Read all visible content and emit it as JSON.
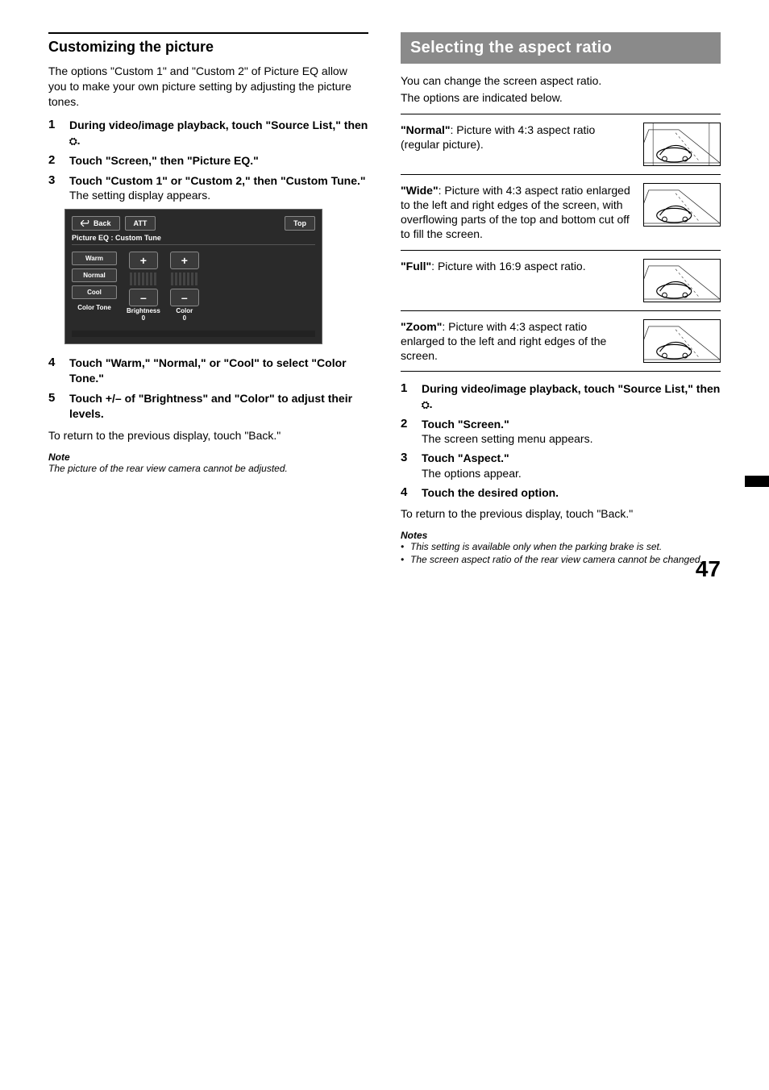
{
  "left": {
    "rule": true,
    "heading": "Customizing the picture",
    "intro": "The options \"Custom 1\" and \"Custom 2\" of Picture EQ allow you to make your own picture setting by adjusting the picture tones.",
    "steps_a": [
      {
        "num": "1",
        "title_pre": "During video/image playback, touch \"Source List,\" then ",
        "icon": "⛭",
        "title_post": "."
      },
      {
        "num": "2",
        "title": "Touch \"Screen,\" then \"Picture EQ.\""
      },
      {
        "num": "3",
        "title": "Touch \"Custom 1\" or \"Custom 2,\" then \"Custom Tune.\"",
        "text": "The setting display appears."
      }
    ],
    "mock": {
      "back": "Back",
      "att": "ATT",
      "top": "Top",
      "title": "Picture EQ : Custom Tune",
      "tones": [
        "Warm",
        "Normal",
        "Cool"
      ],
      "tone_label": "Color Tone",
      "brightness_label": "Brightness",
      "brightness_val": "0",
      "color_label": "Color",
      "color_val": "0"
    },
    "steps_b": [
      {
        "num": "4",
        "title": "Touch \"Warm,\" \"Normal,\" or \"Cool\" to select \"Color Tone.\""
      },
      {
        "num": "5",
        "title": "Touch +/– of \"Brightness\" and \"Color\" to adjust their levels."
      }
    ],
    "return_text": "To return to the previous display, touch \"Back.\"",
    "note_head": "Note",
    "note_body": "The picture of the rear view camera cannot be adjusted."
  },
  "right": {
    "banner": "Selecting the aspect ratio",
    "intro1": "You can change the screen aspect ratio.",
    "intro2": "The options are indicated below.",
    "aspects": [
      {
        "name": "\"Normal\"",
        "desc": ": Picture with 4:3 aspect ratio (regular picture).",
        "thumb": "normal"
      },
      {
        "name": "\"Wide\"",
        "desc": ": Picture with 4:3 aspect ratio enlarged to the left and right edges of the screen, with overflowing parts of the top and bottom cut off to fill the screen.",
        "thumb": "wide"
      },
      {
        "name": "\"Full\"",
        "desc": ": Picture with 16:9 aspect ratio.",
        "thumb": "full"
      },
      {
        "name": "\"Zoom\"",
        "desc": ": Picture with 4:3 aspect ratio enlarged to the left and right edges of the screen.",
        "thumb": "zoom"
      }
    ],
    "steps": [
      {
        "num": "1",
        "title_pre": "During video/image playback, touch \"Source List,\" then ",
        "icon": "⛭",
        "title_post": "."
      },
      {
        "num": "2",
        "title": "Touch \"Screen.\"",
        "text": "The screen setting menu appears."
      },
      {
        "num": "3",
        "title": "Touch \"Aspect.\"",
        "text": "The options appear."
      },
      {
        "num": "4",
        "title": "Touch the desired option."
      }
    ],
    "return_text": "To return to the previous display, touch \"Back.\"",
    "notes_head": "Notes",
    "notes": [
      "This setting is available only when the parking brake is set.",
      "The screen aspect ratio of the rear view camera cannot be changed."
    ]
  },
  "page_number": "47",
  "colors": {
    "banner_bg": "#8a8a8a"
  }
}
